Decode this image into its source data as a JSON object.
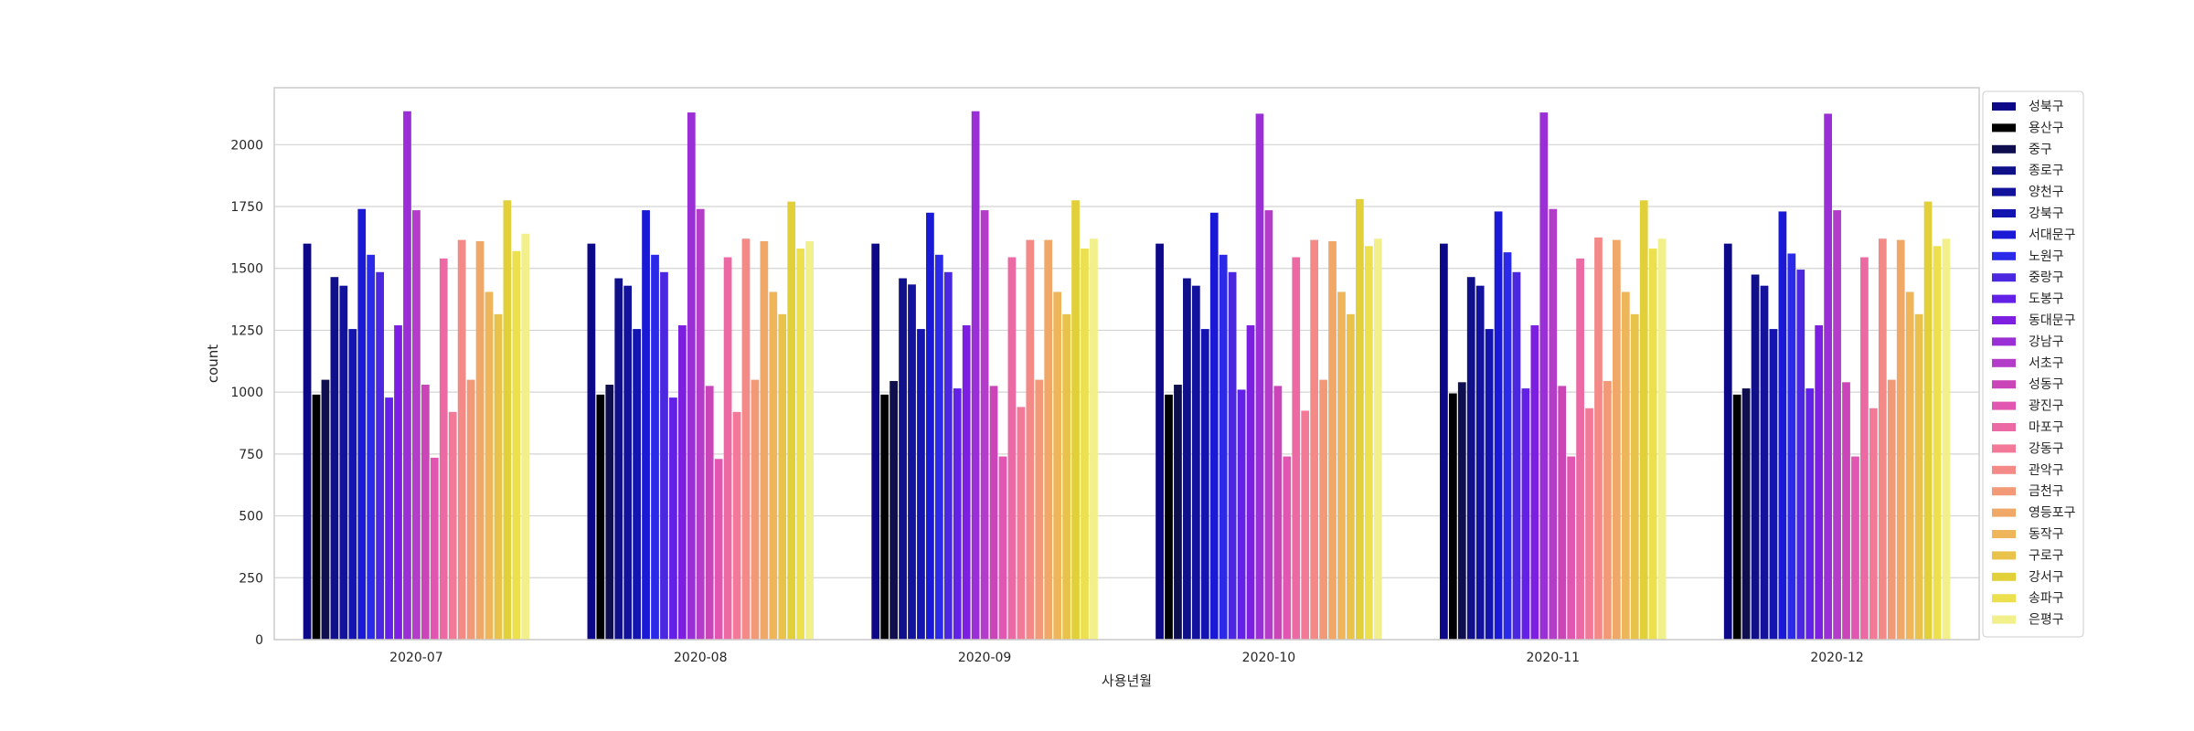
{
  "chart_data": {
    "type": "bar",
    "xlabel": "사용년월",
    "ylabel": "count",
    "ylim": [
      0,
      2230
    ],
    "yticks": [
      0,
      250,
      500,
      750,
      1000,
      1250,
      1500,
      1750,
      2000
    ],
    "grid": "y",
    "legend_position": "right",
    "categories": [
      "2020-07",
      "2020-08",
      "2020-09",
      "2020-10",
      "2020-11",
      "2020-12"
    ],
    "series": [
      {
        "name": "성북구",
        "color": "#0d0887",
        "values": [
          1600,
          1600,
          1600,
          1600,
          1600,
          1600
        ]
      },
      {
        "name": "용산구",
        "color": "#000000",
        "values": [
          990,
          990,
          990,
          990,
          995,
          990
        ]
      },
      {
        "name": "중구",
        "color": "#0f0f50",
        "values": [
          1050,
          1030,
          1045,
          1030,
          1040,
          1015
        ]
      },
      {
        "name": "종로구",
        "color": "#10108a",
        "values": [
          1465,
          1460,
          1460,
          1460,
          1465,
          1475
        ]
      },
      {
        "name": "양천구",
        "color": "#12129c",
        "values": [
          1430,
          1430,
          1435,
          1430,
          1430,
          1430
        ]
      },
      {
        "name": "강북구",
        "color": "#1414b0",
        "values": [
          1255,
          1255,
          1255,
          1255,
          1255,
          1255
        ]
      },
      {
        "name": "서대문구",
        "color": "#1a1ad6",
        "values": [
          1740,
          1735,
          1725,
          1725,
          1730,
          1730
        ]
      },
      {
        "name": "노원구",
        "color": "#2a2ae8",
        "values": [
          1555,
          1555,
          1555,
          1555,
          1565,
          1560
        ]
      },
      {
        "name": "중랑구",
        "color": "#4b28e0",
        "values": [
          1485,
          1485,
          1485,
          1485,
          1485,
          1495
        ]
      },
      {
        "name": "도봉구",
        "color": "#6320e6",
        "values": [
          978,
          978,
          1015,
          1010,
          1015,
          1015
        ]
      },
      {
        "name": "동대문구",
        "color": "#7d1fe0",
        "values": [
          1270,
          1270,
          1270,
          1270,
          1270,
          1270
        ]
      },
      {
        "name": "강남구",
        "color": "#9a2fd6",
        "values": [
          2135,
          2130,
          2135,
          2125,
          2130,
          2125
        ]
      },
      {
        "name": "서초구",
        "color": "#b33cc8",
        "values": [
          1735,
          1740,
          1735,
          1735,
          1740,
          1735
        ]
      },
      {
        "name": "성동구",
        "color": "#c945b8",
        "values": [
          1030,
          1025,
          1025,
          1025,
          1025,
          1040
        ]
      },
      {
        "name": "광진구",
        "color": "#e056b0",
        "values": [
          735,
          730,
          740,
          740,
          740,
          740
        ]
      },
      {
        "name": "마포구",
        "color": "#ec6aa4",
        "values": [
          1540,
          1545,
          1545,
          1545,
          1540,
          1545
        ]
      },
      {
        "name": "강동구",
        "color": "#f27a98",
        "values": [
          920,
          920,
          940,
          925,
          935,
          935
        ]
      },
      {
        "name": "관악구",
        "color": "#f48a88",
        "values": [
          1615,
          1620,
          1615,
          1615,
          1625,
          1620
        ]
      },
      {
        "name": "금천구",
        "color": "#f29a78",
        "values": [
          1050,
          1050,
          1050,
          1050,
          1045,
          1050
        ]
      },
      {
        "name": "영등포구",
        "color": "#f0a868",
        "values": [
          1610,
          1610,
          1615,
          1610,
          1615,
          1615
        ]
      },
      {
        "name": "동작구",
        "color": "#eeb55a",
        "values": [
          1405,
          1405,
          1405,
          1405,
          1405,
          1405
        ]
      },
      {
        "name": "구로구",
        "color": "#e8c24a",
        "values": [
          1315,
          1315,
          1315,
          1315,
          1315,
          1315
        ]
      },
      {
        "name": "강서구",
        "color": "#e2d03a",
        "values": [
          1775,
          1770,
          1775,
          1780,
          1775,
          1770
        ]
      },
      {
        "name": "송파구",
        "color": "#ede04e",
        "values": [
          1570,
          1580,
          1580,
          1590,
          1580,
          1590
        ]
      },
      {
        "name": "은평구",
        "color": "#f1f08a",
        "values": [
          1640,
          1610,
          1620,
          1620,
          1620,
          1620
        ]
      }
    ]
  }
}
